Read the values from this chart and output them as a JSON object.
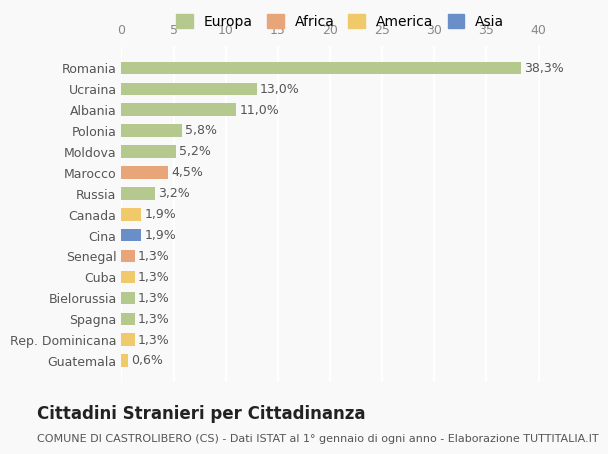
{
  "countries": [
    "Romania",
    "Ucraina",
    "Albania",
    "Polonia",
    "Moldova",
    "Marocco",
    "Russia",
    "Canada",
    "Cina",
    "Senegal",
    "Cuba",
    "Bielorussia",
    "Spagna",
    "Rep. Dominicana",
    "Guatemala"
  ],
  "values": [
    38.3,
    13.0,
    11.0,
    5.8,
    5.2,
    4.5,
    3.2,
    1.9,
    1.9,
    1.3,
    1.3,
    1.3,
    1.3,
    1.3,
    0.6
  ],
  "labels": [
    "38,3%",
    "13,0%",
    "11,0%",
    "5,8%",
    "5,2%",
    "4,5%",
    "3,2%",
    "1,9%",
    "1,9%",
    "1,3%",
    "1,3%",
    "1,3%",
    "1,3%",
    "1,3%",
    "0,6%"
  ],
  "continents": [
    "Europa",
    "Europa",
    "Europa",
    "Europa",
    "Europa",
    "Africa",
    "Europa",
    "America",
    "Asia",
    "Africa",
    "America",
    "Europa",
    "Europa",
    "America",
    "America"
  ],
  "continent_colors": {
    "Europa": "#b5c98e",
    "Africa": "#e8a57a",
    "America": "#f0c96a",
    "Asia": "#6a8fc8"
  },
  "legend_order": [
    "Europa",
    "Africa",
    "America",
    "Asia"
  ],
  "xlim": [
    0,
    42
  ],
  "xticks": [
    0,
    5,
    10,
    15,
    20,
    25,
    30,
    35,
    40
  ],
  "title": "Cittadini Stranieri per Cittadinanza",
  "subtitle": "COMUNE DI CASTROLIBERO (CS) - Dati ISTAT al 1° gennaio di ogni anno - Elaborazione TUTTITALIA.IT",
  "bg_color": "#f9f9f9",
  "grid_color": "#ffffff",
  "bar_height": 0.6,
  "label_fontsize": 9,
  "tick_fontsize": 9,
  "title_fontsize": 12,
  "subtitle_fontsize": 8
}
